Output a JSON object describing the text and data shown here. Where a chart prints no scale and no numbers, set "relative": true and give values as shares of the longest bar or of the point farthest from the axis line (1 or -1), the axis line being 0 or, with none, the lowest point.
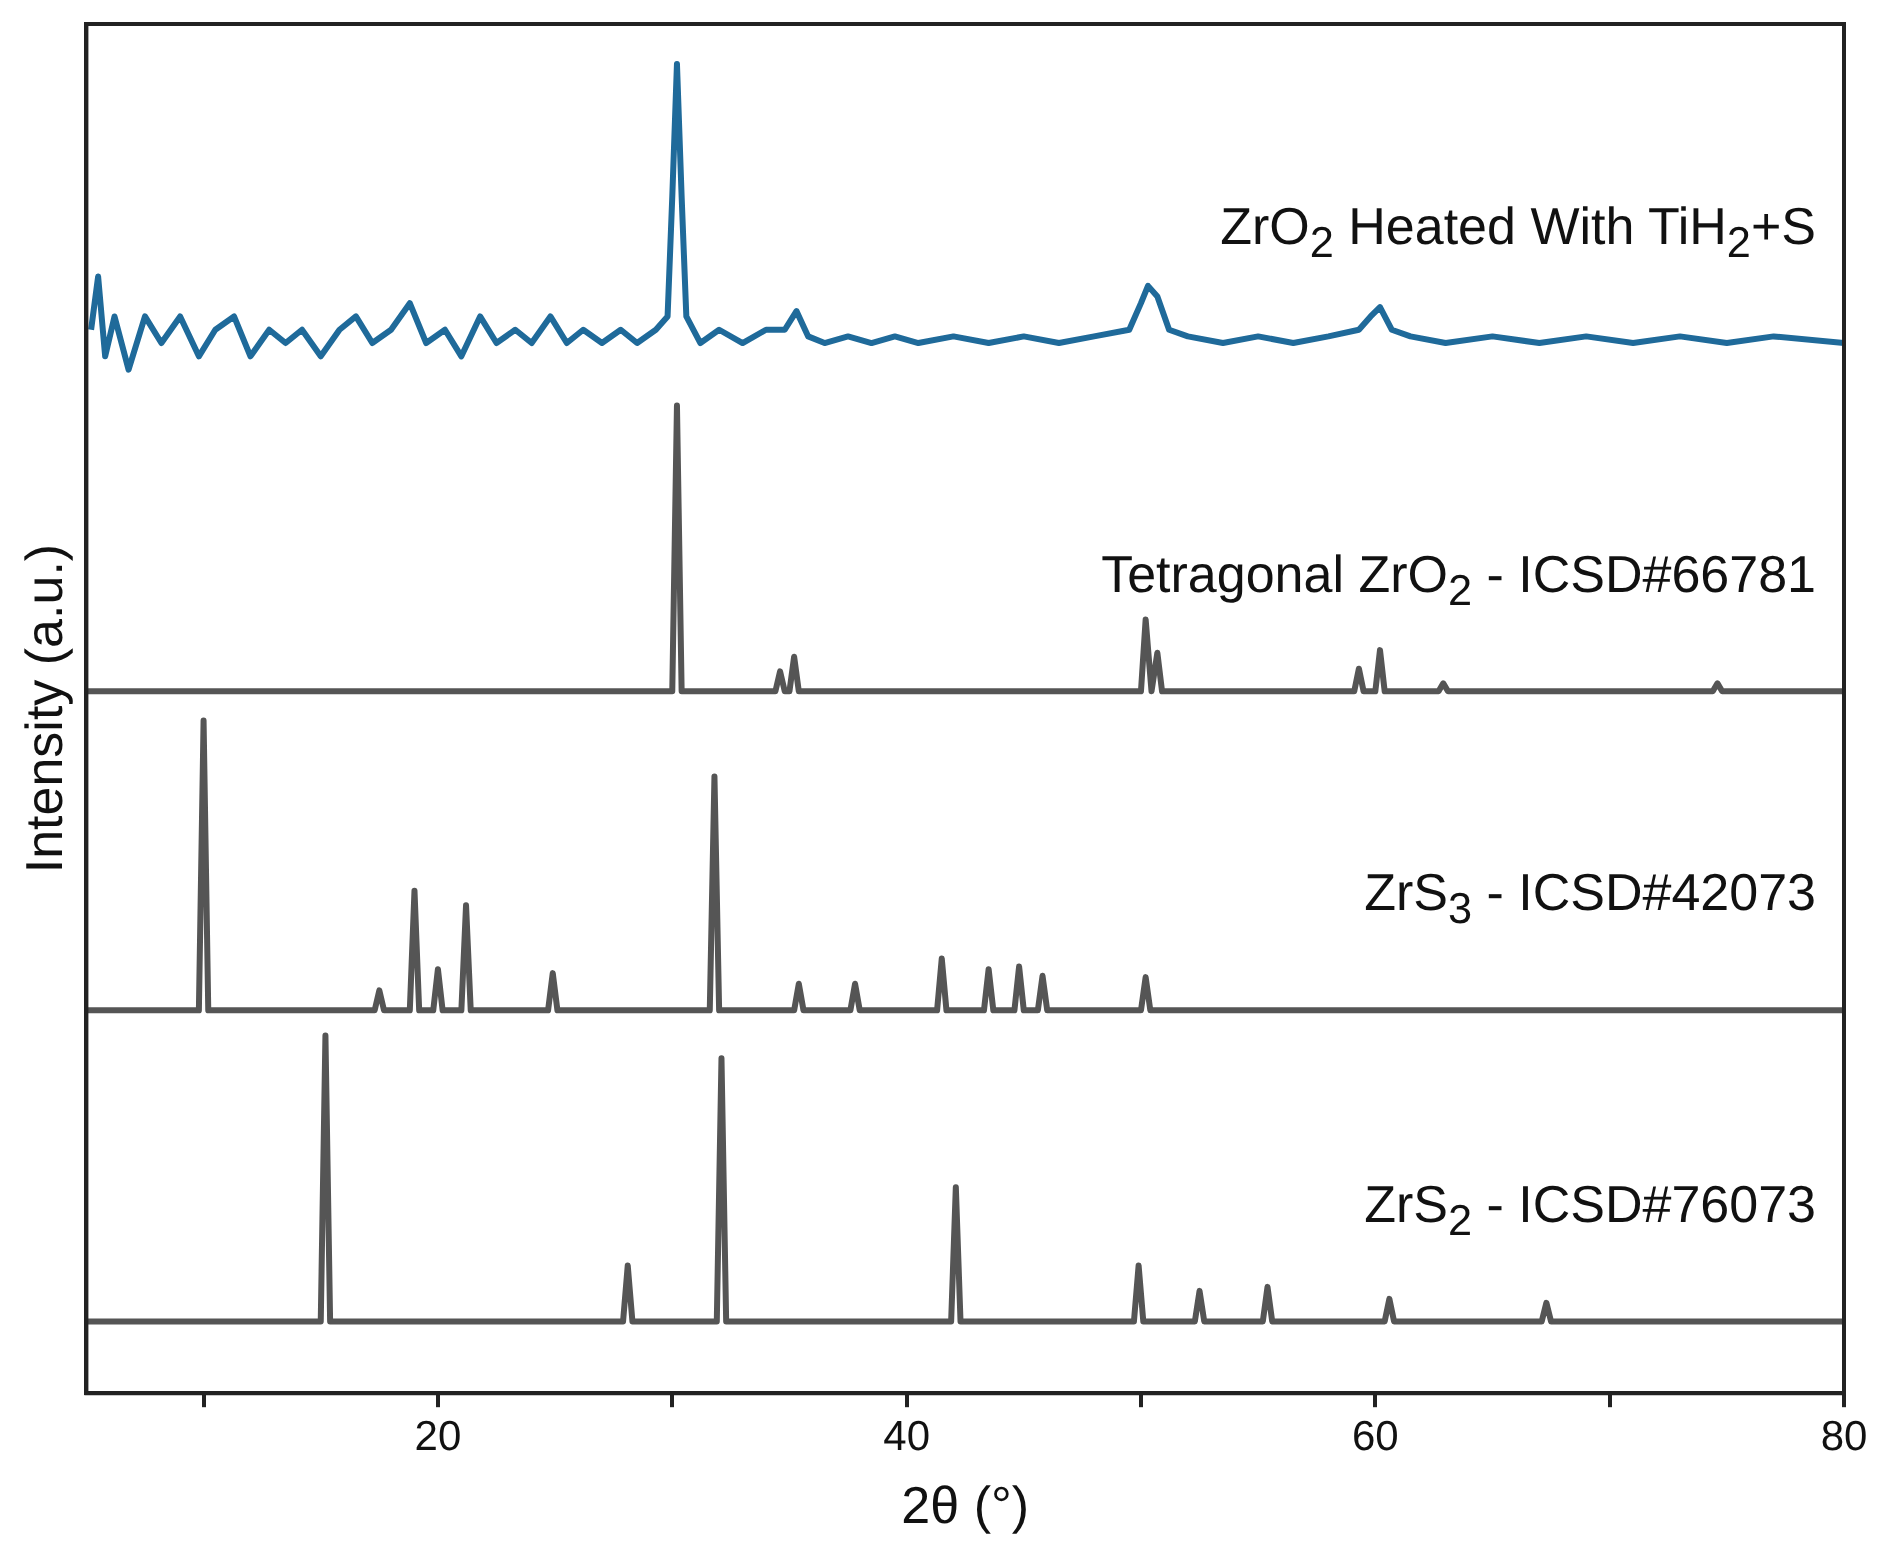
{
  "chart_data": {
    "type": "line",
    "xlabel": "2θ (°)",
    "ylabel": "Intensity (a.u.)",
    "relative": true,
    "xlim": [
      5,
      80
    ],
    "xticks": [
      {
        "value": 10,
        "label": null
      },
      20,
      {
        "value": 30,
        "label": null
      },
      40,
      {
        "value": 50,
        "label": null
      },
      60,
      {
        "value": 70,
        "label": null
      },
      80
    ],
    "grid": false,
    "legend": false,
    "marker": "none",
    "line_style": "solid",
    "series": [
      {
        "name": "ZrO$_{2}$ Heated With TiH$_{2}$+S",
        "color": "#1f6a9a",
        "x": [
          5.2,
          5.5,
          5.8,
          6.2,
          6.8,
          7.5,
          8.2,
          9.0,
          9.8,
          10.5,
          11.3,
          12.0,
          12.8,
          13.5,
          14.2,
          15.0,
          15.8,
          16.5,
          17.2,
          18.0,
          18.8,
          19.5,
          20.3,
          21.0,
          21.8,
          22.5,
          23.3,
          24.0,
          24.8,
          25.5,
          26.2,
          27.0,
          27.8,
          28.5,
          29.3,
          29.8,
          30.0,
          30.2,
          30.4,
          30.6,
          31.2,
          32.0,
          33.0,
          34.0,
          34.8,
          35.3,
          35.8,
          36.5,
          37.5,
          38.5,
          39.5,
          40.5,
          42,
          43.5,
          45,
          46.5,
          48,
          49.5,
          50.0,
          50.3,
          50.7,
          51.2,
          52,
          53.5,
          55,
          56.5,
          58,
          59.3,
          59.8,
          60.2,
          60.7,
          61.5,
          63,
          65,
          67,
          69,
          71,
          73,
          75,
          77,
          80
        ],
        "values": [
          0.8,
          0.84,
          0.78,
          0.81,
          0.77,
          0.81,
          0.79,
          0.81,
          0.78,
          0.8,
          0.81,
          0.78,
          0.8,
          0.79,
          0.8,
          0.78,
          0.8,
          0.81,
          0.79,
          0.8,
          0.82,
          0.79,
          0.8,
          0.78,
          0.81,
          0.79,
          0.8,
          0.79,
          0.81,
          0.79,
          0.8,
          0.79,
          0.8,
          0.79,
          0.8,
          0.81,
          0.9,
          1.0,
          0.9,
          0.81,
          0.79,
          0.8,
          0.79,
          0.8,
          0.8,
          0.814,
          0.795,
          0.79,
          0.795,
          0.79,
          0.795,
          0.79,
          0.795,
          0.79,
          0.795,
          0.79,
          0.795,
          0.8,
          0.82,
          0.833,
          0.825,
          0.8,
          0.795,
          0.79,
          0.795,
          0.79,
          0.795,
          0.8,
          0.81,
          0.817,
          0.8,
          0.795,
          0.79,
          0.795,
          0.79,
          0.795,
          0.79,
          0.795,
          0.79,
          0.795,
          0.79
        ]
      },
      {
        "name": "Tetragonal ZrO$_{2}$ - ICSD#66781",
        "color": "#555555",
        "x": [
          5,
          30.0,
          30.2,
          30.4,
          34.4,
          34.6,
          34.8,
          35.0,
          35.2,
          35.4,
          50.0,
          50.2,
          50.45,
          50.7,
          50.9,
          59.1,
          59.3,
          59.5,
          60.0,
          60.2,
          60.4,
          62.7,
          62.9,
          63.1,
          74.4,
          74.6,
          74.8,
          80
        ],
        "values": [
          0.528,
          0.528,
          0.743,
          0.528,
          0.528,
          0.543,
          0.528,
          0.528,
          0.554,
          0.528,
          0.528,
          0.582,
          0.528,
          0.557,
          0.528,
          0.528,
          0.545,
          0.528,
          0.528,
          0.559,
          0.528,
          0.528,
          0.534,
          0.528,
          0.528,
          0.534,
          0.528,
          0.528
        ]
      },
      {
        "name": "ZrS$_{3}$ - ICSD#42073",
        "color": "#555555",
        "x": [
          5,
          9.8,
          10.0,
          10.2,
          17.3,
          17.5,
          17.7,
          18.8,
          19.0,
          19.2,
          19.8,
          20.0,
          20.2,
          21.0,
          21.2,
          21.4,
          24.7,
          24.9,
          25.1,
          31.6,
          31.8,
          32.0,
          35.2,
          35.4,
          35.6,
          37.6,
          37.8,
          38.0,
          41.3,
          41.5,
          41.7,
          43.3,
          43.5,
          43.7,
          44.6,
          44.8,
          45.0,
          45.6,
          45.8,
          46.0,
          50.0,
          50.2,
          50.4,
          80
        ],
        "values": [
          0.288,
          0.288,
          0.506,
          0.288,
          0.288,
          0.303,
          0.288,
          0.288,
          0.378,
          0.288,
          0.288,
          0.319,
          0.288,
          0.288,
          0.367,
          0.288,
          0.288,
          0.316,
          0.288,
          0.288,
          0.464,
          0.288,
          0.288,
          0.308,
          0.288,
          0.288,
          0.308,
          0.288,
          0.288,
          0.327,
          0.288,
          0.288,
          0.319,
          0.288,
          0.288,
          0.321,
          0.288,
          0.288,
          0.314,
          0.288,
          0.288,
          0.313,
          0.288,
          0.288
        ]
      },
      {
        "name": "ZrS$_{2}$ - ICSD#76073",
        "color": "#555555",
        "x": [
          5,
          15.0,
          15.2,
          15.4,
          27.9,
          28.1,
          28.3,
          31.9,
          32.1,
          32.3,
          41.9,
          42.1,
          42.3,
          49.7,
          49.9,
          50.1,
          52.3,
          52.5,
          52.7,
          55.2,
          55.4,
          55.6,
          60.4,
          60.6,
          60.8,
          67.1,
          67.3,
          67.5,
          80
        ],
        "values": [
          0.054,
          0.054,
          0.269,
          0.054,
          0.054,
          0.096,
          0.054,
          0.054,
          0.252,
          0.054,
          0.054,
          0.155,
          0.054,
          0.054,
          0.096,
          0.054,
          0.054,
          0.077,
          0.054,
          0.054,
          0.08,
          0.054,
          0.054,
          0.071,
          0.054,
          0.054,
          0.068,
          0.054,
          0.054
        ]
      }
    ]
  }
}
